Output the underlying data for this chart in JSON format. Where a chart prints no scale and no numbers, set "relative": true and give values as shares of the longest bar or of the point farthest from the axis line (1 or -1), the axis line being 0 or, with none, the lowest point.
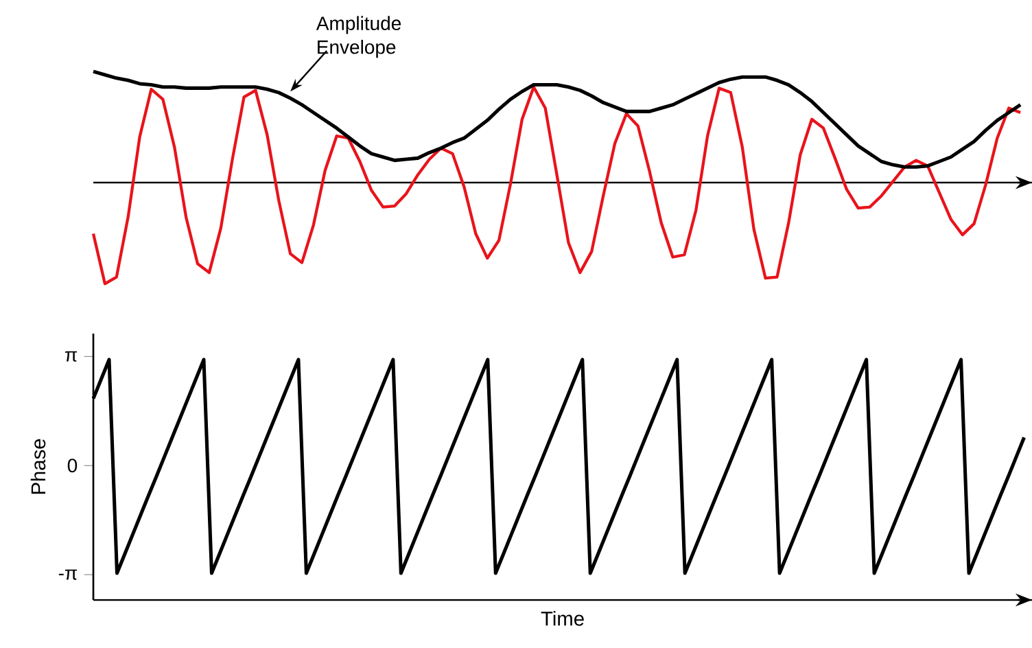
{
  "chart_data": [
    {
      "type": "line",
      "relative": true,
      "tick_labels": false,
      "categories": [
        null,
        null,
        null,
        null,
        null,
        null,
        null,
        null,
        null,
        null,
        null,
        null,
        null,
        null,
        null,
        null,
        null,
        null,
        null,
        null,
        null,
        null,
        null,
        null,
        null,
        null,
        null,
        null,
        null,
        null,
        null,
        null,
        null,
        null,
        null,
        null,
        null,
        null,
        null,
        null,
        null,
        null,
        null,
        null,
        null,
        null,
        null,
        null,
        null,
        null,
        null,
        null,
        null,
        null,
        null,
        null,
        null,
        null,
        null,
        null,
        null,
        null,
        null,
        null,
        null,
        null,
        null,
        null,
        null,
        null,
        null,
        null,
        null,
        null,
        null,
        null,
        null,
        null,
        null,
        null,
        null
      ],
      "series": [
        {
          "color": "#e8141b",
          "values": [
            -0.46,
            -0.91,
            -0.85,
            -0.31,
            0.41,
            0.84,
            0.75,
            0.32,
            -0.31,
            -0.73,
            -0.81,
            -0.41,
            0.21,
            0.77,
            0.83,
            0.43,
            -0.16,
            -0.64,
            -0.72,
            -0.38,
            0.11,
            0.42,
            0.4,
            0.19,
            -0.07,
            -0.22,
            -0.21,
            -0.1,
            0.07,
            0.21,
            0.31,
            0.26,
            -0.04,
            -0.46,
            -0.68,
            -0.52,
            -0.01,
            0.57,
            0.86,
            0.67,
            0.07,
            -0.54,
            -0.81,
            -0.62,
            -0.12,
            0.35,
            0.62,
            0.51,
            0.1,
            -0.36,
            -0.67,
            -0.65,
            -0.25,
            0.42,
            0.85,
            0.81,
            0.32,
            -0.42,
            -0.86,
            -0.85,
            -0.36,
            0.25,
            0.57,
            0.49,
            0.22,
            -0.06,
            -0.23,
            -0.22,
            -0.12,
            0.01,
            0.14,
            0.2,
            0.15,
            -0.09,
            -0.33,
            -0.47,
            -0.37,
            -0.02,
            0.4,
            0.67,
            0.63
          ]
        },
        {
          "name": "Amplitude Envelope",
          "color": "#000000",
          "values": [
            1,
            0.97,
            0.94,
            0.92,
            0.89,
            0.88,
            0.86,
            0.86,
            0.85,
            0.85,
            0.85,
            0.86,
            0.86,
            0.86,
            0.86,
            0.84,
            0.81,
            0.76,
            0.7,
            0.63,
            0.56,
            0.49,
            0.41,
            0.33,
            0.26,
            0.23,
            0.2,
            0.21,
            0.22,
            0.27,
            0.31,
            0.36,
            0.4,
            0.48,
            0.56,
            0.66,
            0.75,
            0.82,
            0.88,
            0.88,
            0.88,
            0.86,
            0.83,
            0.78,
            0.72,
            0.68,
            0.64,
            0.64,
            0.64,
            0.67,
            0.7,
            0.75,
            0.8,
            0.85,
            0.9,
            0.93,
            0.95,
            0.95,
            0.95,
            0.92,
            0.88,
            0.81,
            0.73,
            0.63,
            0.53,
            0.43,
            0.33,
            0.26,
            0.19,
            0.16,
            0.14,
            0.14,
            0.15,
            0.19,
            0.23,
            0.3,
            0.37,
            0.47,
            0.56,
            0.63,
            0.7
          ]
        }
      ]
    },
    {
      "type": "line",
      "xlabel": "Time",
      "ylabel": "Phase",
      "tick_labels": "y",
      "ylim": [
        -3.87,
        3.8
      ],
      "yticks": [
        {
          "value": -3.1416,
          "label": "-π"
        },
        0,
        {
          "value": 3.1416,
          "label": "π"
        }
      ],
      "categories": [
        null,
        null,
        null,
        null,
        null,
        null,
        null,
        null,
        null,
        null,
        null,
        null,
        null,
        null,
        null,
        null,
        null,
        null,
        null,
        null,
        null,
        null,
        null,
        null,
        null,
        null,
        null,
        null,
        null,
        null,
        null,
        null,
        null,
        null,
        null,
        null,
        null,
        null,
        null,
        null,
        null,
        null,
        null,
        null,
        null,
        null,
        null,
        null,
        null,
        null,
        null,
        null,
        null,
        null,
        null,
        null,
        null,
        null,
        null,
        null,
        null,
        null,
        null,
        null,
        null,
        null,
        null,
        null,
        null,
        null,
        null,
        null,
        null,
        null,
        null,
        null,
        null,
        null,
        null,
        null,
        null,
        null,
        null,
        null,
        null,
        null,
        null,
        null,
        null,
        null,
        null,
        null,
        null,
        null,
        null,
        null,
        null,
        null,
        null,
        null,
        null,
        null,
        null,
        null,
        null,
        null,
        null,
        null,
        null,
        null,
        null,
        null,
        null,
        null,
        null,
        null,
        null,
        null,
        null
      ],
      "series": [
        {
          "color": "#000000",
          "values": [
            1.93,
            2.49,
            3.05,
            -3.1,
            -2.54,
            -1.98,
            -1.42,
            -0.86,
            -0.31,
            0.25,
            0.81,
            1.37,
            1.93,
            2.49,
            3.05,
            -3.1,
            -2.54,
            -1.98,
            -1.42,
            -0.86,
            -0.31,
            0.25,
            0.81,
            1.37,
            1.93,
            2.49,
            3.05,
            -3.1,
            -2.54,
            -1.98,
            -1.42,
            -0.86,
            -0.31,
            0.25,
            0.81,
            1.37,
            1.93,
            2.49,
            3.05,
            -3.1,
            -2.54,
            -1.98,
            -1.42,
            -0.86,
            -0.31,
            0.25,
            0.81,
            1.37,
            1.93,
            2.49,
            3.05,
            -3.1,
            -2.54,
            -1.98,
            -1.42,
            -0.86,
            -0.31,
            0.25,
            0.81,
            1.37,
            1.93,
            2.49,
            3.05,
            -3.1,
            -2.54,
            -1.98,
            -1.42,
            -0.86,
            -0.31,
            0.25,
            0.81,
            1.37,
            1.93,
            2.49,
            3.05,
            -3.1,
            -2.54,
            -1.98,
            -1.42,
            -0.86,
            -0.31,
            0.25,
            0.81,
            1.37,
            1.93,
            2.49,
            3.05,
            -3.1,
            -2.54,
            -1.98,
            -1.42,
            -0.86,
            -0.31,
            0.25,
            0.81,
            1.37,
            1.93,
            2.49,
            3.05,
            -3.1,
            -2.54,
            -1.98,
            -1.42,
            -0.86,
            -0.31,
            0.25,
            0.81,
            1.37,
            1.93,
            2.49,
            3.05,
            -3.1,
            -2.54,
            -1.98,
            -1.42,
            -0.86,
            -0.31,
            0.25,
            0.81
          ]
        }
      ]
    }
  ]
}
